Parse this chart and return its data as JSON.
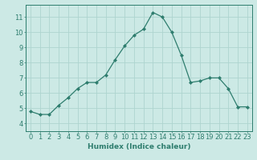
{
  "x": [
    0,
    1,
    2,
    3,
    4,
    5,
    6,
    7,
    8,
    9,
    10,
    11,
    12,
    13,
    14,
    15,
    16,
    17,
    18,
    19,
    20,
    21,
    22,
    23
  ],
  "y": [
    4.8,
    4.6,
    4.6,
    5.2,
    5.7,
    6.3,
    6.7,
    6.7,
    7.2,
    8.2,
    9.1,
    9.8,
    10.2,
    11.3,
    11.0,
    10.0,
    8.5,
    6.7,
    6.8,
    7.0,
    7.0,
    6.3,
    5.1,
    5.1
  ],
  "xlabel": "Humidex (Indice chaleur)",
  "xlim": [
    -0.5,
    23.5
  ],
  "ylim": [
    3.5,
    11.8
  ],
  "yticks": [
    4,
    5,
    6,
    7,
    8,
    9,
    10,
    11
  ],
  "xticks": [
    0,
    1,
    2,
    3,
    4,
    5,
    6,
    7,
    8,
    9,
    10,
    11,
    12,
    13,
    14,
    15,
    16,
    17,
    18,
    19,
    20,
    21,
    22,
    23
  ],
  "line_color": "#2e7d6e",
  "marker": "D",
  "marker_size": 2.0,
  "bg_color": "#cce9e5",
  "grid_color": "#aed4cf",
  "label_fontsize": 6.5,
  "tick_fontsize": 6.0
}
